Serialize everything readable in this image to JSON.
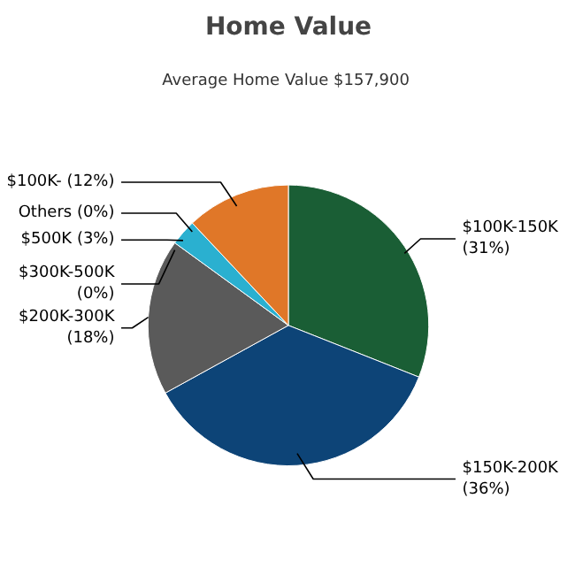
{
  "chart_data": {
    "type": "pie",
    "title": "Home Value",
    "subtitle": "Average Home Value  $157,900",
    "categories": [
      "$100K-150K",
      "$150K-200K",
      "$200K-300K",
      "$300K-500K",
      "$500K",
      "Others",
      "$100K-"
    ],
    "values": [
      31,
      36,
      18,
      0,
      3,
      0,
      12
    ],
    "colors": [
      "#1a5e35",
      "#0d4477",
      "#5a5a5a",
      "#4a6a8a",
      "#2ab0d0",
      "#8a8a8a",
      "#e07728"
    ],
    "value_labels": [
      "(31%)",
      "(36%)",
      "(18%)",
      "(0%)",
      "(3%)",
      "(0%)",
      "(12%)"
    ]
  }
}
